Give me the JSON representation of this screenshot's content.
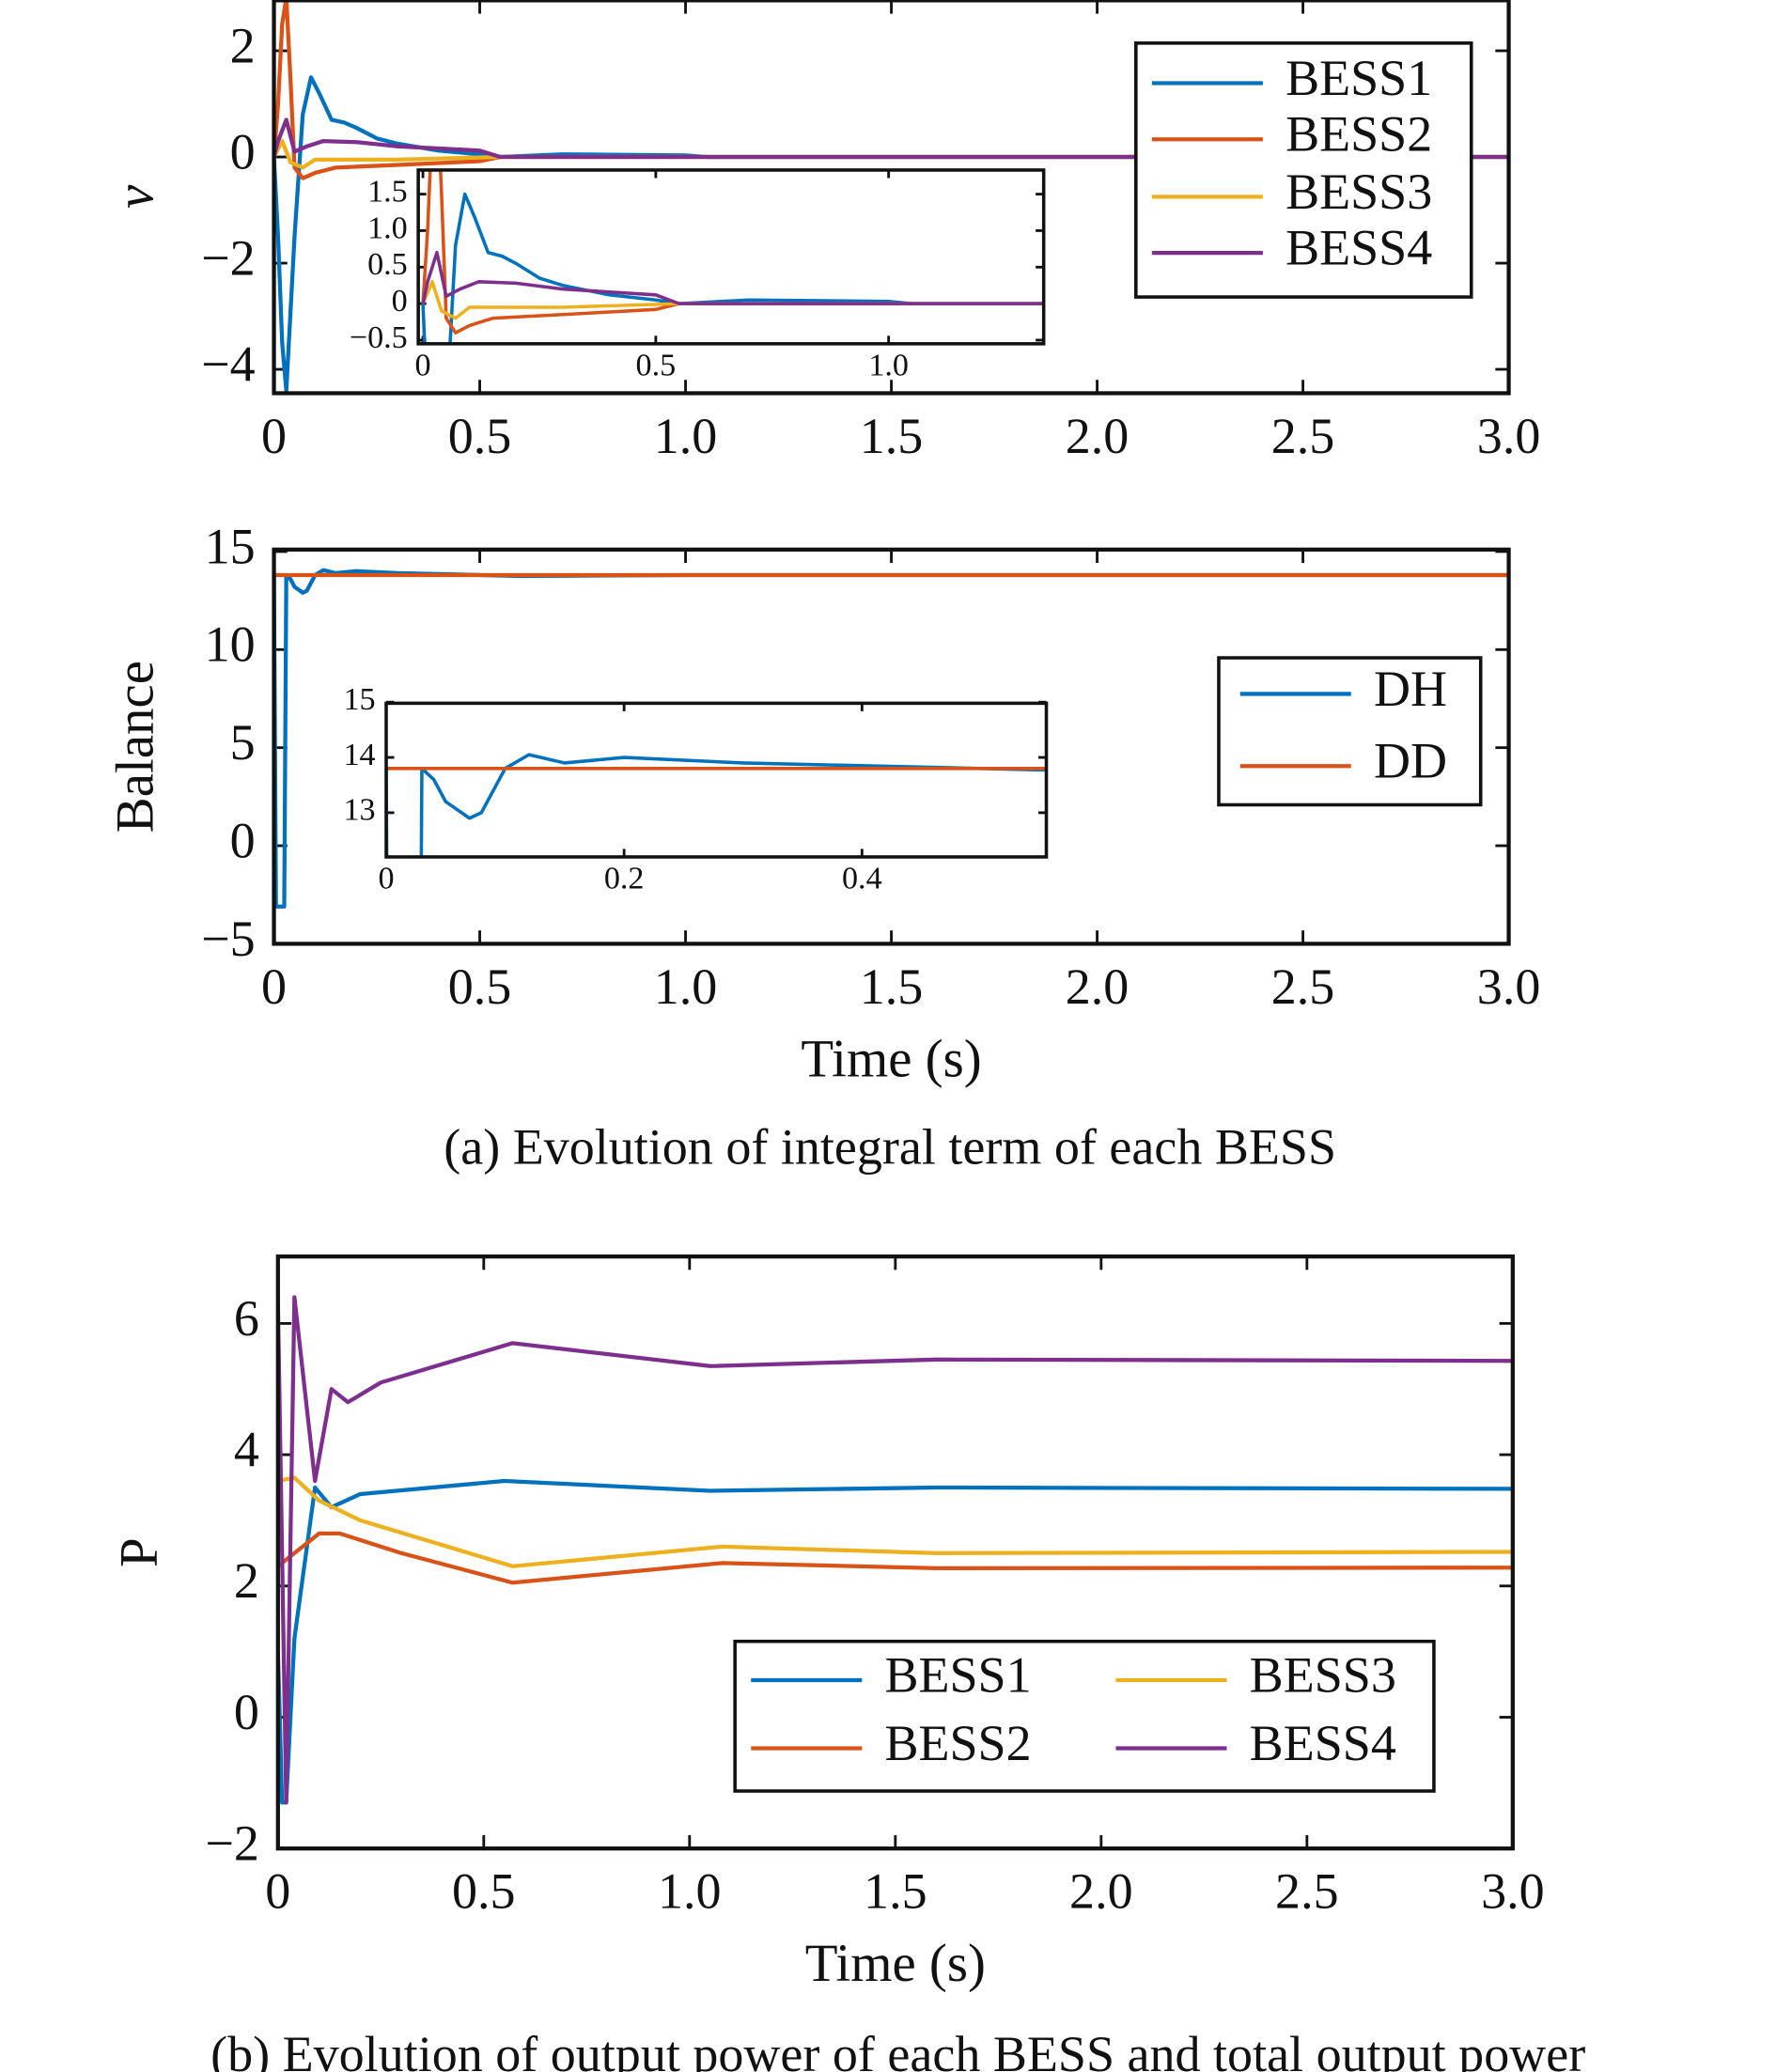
{
  "captions": [
    "(a) Evolution of integral term of each BESS",
    "(b) Evolution of output power of each BESS and total output power"
  ],
  "chart_data": [
    {
      "type": "line",
      "ylabel": "v",
      "xlim": [
        0,
        3
      ],
      "xticks": [
        0,
        0.5,
        {
          "value": 1,
          "label": "1.0"
        },
        1.5,
        {
          "value": 2,
          "label": "2.0"
        },
        2.5,
        {
          "value": 3,
          "label": "3.0"
        }
      ],
      "ylim": [
        -4.45,
        2.95
      ],
      "yticks": [
        {
          "value": -4,
          "label": "−4"
        },
        {
          "value": -2,
          "label": "−2"
        },
        0,
        2
      ],
      "legend": "upper right",
      "series": [
        {
          "name": "BESS1",
          "color": "#0072BD",
          "x": [
            0,
            0.01,
            0.02,
            0.03,
            0.05,
            0.07,
            0.09,
            0.11,
            0.14,
            0.17,
            0.2,
            0.25,
            0.3,
            0.4,
            0.5,
            0.55,
            0.7,
            1.0,
            1.05,
            1.5,
            2.0,
            3.0
          ],
          "values": [
            0,
            -1.5,
            -3.5,
            -4.4,
            -1.5,
            0.8,
            1.5,
            1.2,
            0.7,
            0.65,
            0.55,
            0.35,
            0.25,
            0.12,
            0.05,
            0,
            0.05,
            0.03,
            0,
            0,
            0,
            0
          ]
        },
        {
          "name": "BESS2",
          "color": "#D95319",
          "x": [
            0,
            0.01,
            0.02,
            0.03,
            0.04,
            0.05,
            0.07,
            0.1,
            0.15,
            0.3,
            0.5,
            0.55,
            1.0,
            3.0
          ],
          "values": [
            0,
            1,
            2.5,
            3,
            1.5,
            -0.2,
            -0.4,
            -0.3,
            -0.2,
            -0.15,
            -0.08,
            0,
            0,
            0
          ]
        },
        {
          "name": "BESS3",
          "color": "#EDB120",
          "x": [
            0,
            0.02,
            0.04,
            0.07,
            0.1,
            0.3,
            0.55,
            3.0
          ],
          "values": [
            0,
            0.3,
            -0.1,
            -0.2,
            -0.05,
            -0.05,
            0,
            0
          ]
        },
        {
          "name": "BESS4",
          "color": "#7E2F8E",
          "x": [
            0,
            0.01,
            0.03,
            0.05,
            0.08,
            0.12,
            0.2,
            0.3,
            0.5,
            0.55,
            3.0
          ],
          "values": [
            0,
            0.3,
            0.7,
            0.1,
            0.2,
            0.3,
            0.28,
            0.2,
            0.12,
            0,
            0
          ]
        }
      ],
      "inset": {
        "xlim": [
          -0.01,
          1.333
        ],
        "xticks": [
          0,
          0.5,
          {
            "value": 1,
            "label": "1.0"
          }
        ],
        "ylim": [
          -0.55,
          1.83
        ],
        "yticks": [
          {
            "value": -0.5,
            "label": "−0.5"
          },
          0,
          0.5,
          {
            "value": 1,
            "label": "1.0"
          },
          1.5
        ]
      }
    },
    {
      "type": "line",
      "ylabel": "Balance",
      "xlabel": "Time (s)",
      "xlim": [
        0,
        3
      ],
      "xticks": [
        0,
        0.5,
        {
          "value": 1,
          "label": "1.0"
        },
        1.5,
        {
          "value": 2,
          "label": "2.0"
        },
        2.5,
        {
          "value": 3,
          "label": "3.0"
        }
      ],
      "ylim": [
        -5,
        15.1
      ],
      "yticks": [
        {
          "value": -5,
          "label": "−5"
        },
        0,
        5,
        10,
        15
      ],
      "legend": "center right",
      "series": [
        {
          "name": "DH",
          "color": "#0072BD",
          "x": [
            0,
            0.005,
            0.01,
            0.02,
            0.025,
            0.03,
            0.04,
            0.05,
            0.07,
            0.08,
            0.1,
            0.12,
            0.15,
            0.2,
            0.3,
            0.5,
            0.6,
            1,
            3
          ],
          "values": [
            13.8,
            -3.1,
            -3.1,
            -3.1,
            -3.1,
            13.8,
            13.6,
            13.2,
            12.9,
            13.0,
            13.8,
            14.05,
            13.9,
            14.0,
            13.9,
            13.8,
            13.75,
            13.8,
            13.8
          ]
        },
        {
          "name": "DD",
          "color": "#D95319",
          "x": [
            0,
            3
          ],
          "values": [
            13.8,
            13.8
          ]
        }
      ],
      "inset": {
        "xlim": [
          0,
          0.555
        ],
        "xticks": [
          0,
          0.2,
          0.4
        ],
        "ylim": [
          12.2,
          14.98
        ],
        "yticks": [
          13,
          14,
          15
        ]
      }
    },
    {
      "type": "line",
      "ylabel": "P",
      "xlabel": "Time (s)",
      "xlim": [
        0,
        3
      ],
      "xticks": [
        0,
        0.5,
        {
          "value": 1,
          "label": "1.0"
        },
        1.5,
        {
          "value": 2,
          "label": "2.0"
        },
        2.5,
        {
          "value": 3,
          "label": "3.0"
        }
      ],
      "ylim": [
        -2,
        7.02
      ],
      "yticks": [
        {
          "value": -2,
          "label": "−2"
        },
        0,
        2,
        4,
        6
      ],
      "legend": "lower right",
      "legend_columns": 2,
      "series": [
        {
          "name": "BESS1",
          "color": "#0072BD",
          "x": [
            0,
            0.01,
            0.02,
            0.04,
            0.09,
            0.13,
            0.2,
            0.55,
            1.05,
            1.6,
            3.0
          ],
          "values": [
            1.0,
            -1.3,
            -1.3,
            1.2,
            3.5,
            3.2,
            3.4,
            3.6,
            3.45,
            3.5,
            3.48
          ]
        },
        {
          "name": "BESS2",
          "color": "#D95319",
          "x": [
            0,
            0.04,
            0.1,
            0.15,
            0.3,
            0.57,
            1.08,
            1.6,
            3.0
          ],
          "values": [
            2.3,
            2.5,
            2.8,
            2.8,
            2.5,
            2.05,
            2.35,
            2.27,
            2.28
          ]
        },
        {
          "name": "BESS3",
          "color": "#EDB120",
          "x": [
            0,
            0.04,
            0.1,
            0.2,
            0.57,
            1.08,
            1.6,
            3.0
          ],
          "values": [
            3.6,
            3.65,
            3.3,
            3.0,
            2.3,
            2.6,
            2.5,
            2.52
          ]
        },
        {
          "name": "BESS4",
          "color": "#7E2F8E",
          "x": [
            0,
            0.02,
            0.04,
            0.09,
            0.13,
            0.17,
            0.25,
            0.57,
            1.05,
            1.6,
            3.0
          ],
          "values": [
            6.3,
            -1.3,
            6.4,
            3.6,
            5.0,
            4.8,
            5.1,
            5.7,
            5.35,
            5.45,
            5.43
          ]
        }
      ]
    }
  ]
}
